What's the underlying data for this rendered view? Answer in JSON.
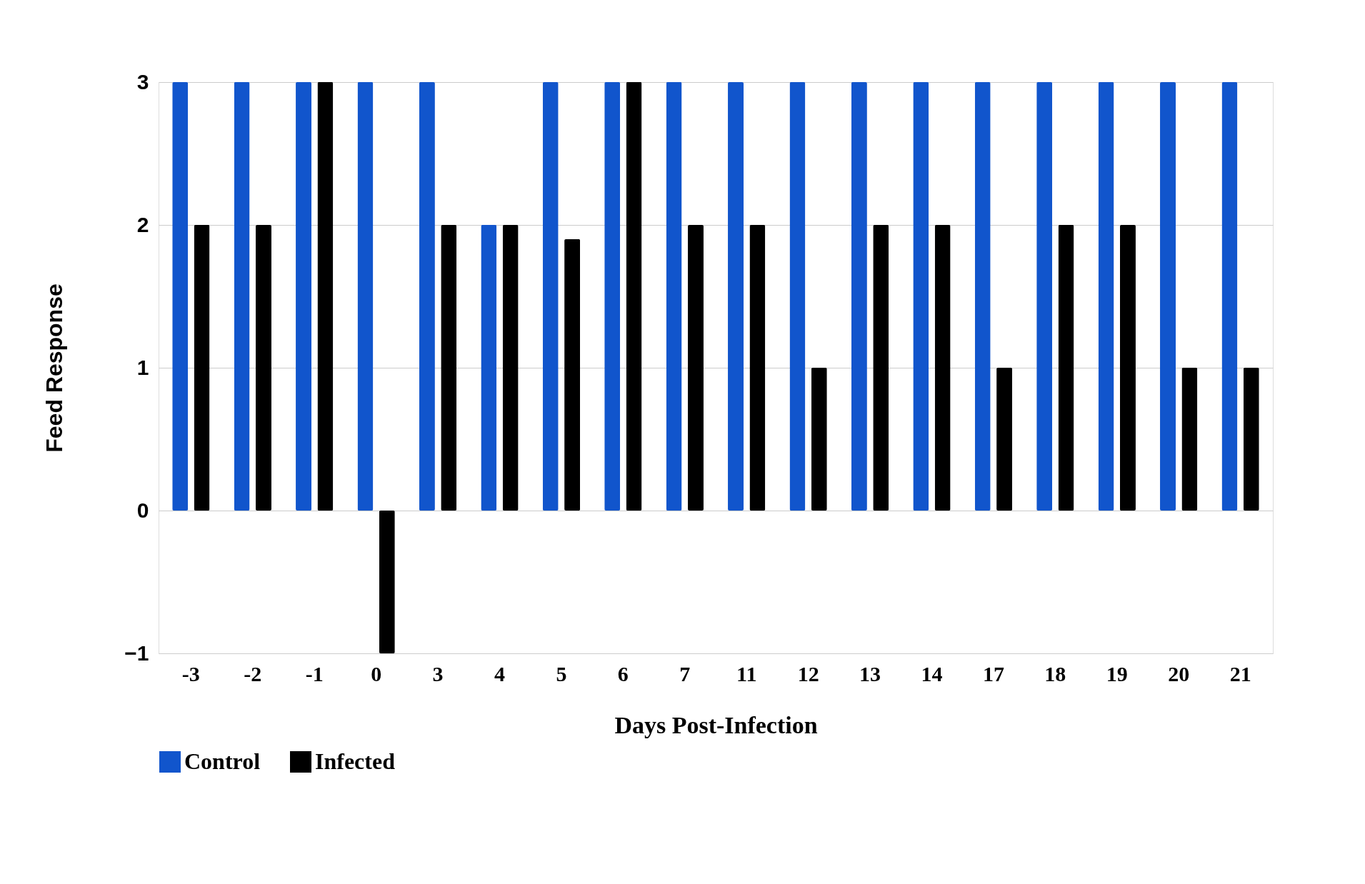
{
  "chart_data": {
    "type": "bar",
    "xlabel": "Days Post-Infection",
    "ylabel": "Feed Response",
    "categories": [
      "-3",
      "-2",
      "-1",
      "0",
      "3",
      "4",
      "5",
      "6",
      "7",
      "11",
      "12",
      "13",
      "14",
      "17",
      "18",
      "19",
      "20",
      "21"
    ],
    "series": [
      {
        "name": "Control",
        "color": "#1155cc",
        "values": [
          3,
          3,
          3,
          3,
          3,
          2,
          3,
          3,
          3,
          3,
          3,
          3,
          3,
          3,
          3,
          3,
          3,
          3
        ]
      },
      {
        "name": "Infected",
        "color": "#000000",
        "values": [
          2,
          2,
          3,
          -1,
          2,
          2,
          1.9,
          3,
          2,
          2,
          1,
          2,
          2,
          1,
          2,
          2,
          1,
          1
        ]
      }
    ],
    "ylim": [
      -1,
      3
    ],
    "yticks": [
      -1,
      0,
      1,
      2,
      3
    ],
    "grid": "y",
    "legend": "bottom"
  }
}
